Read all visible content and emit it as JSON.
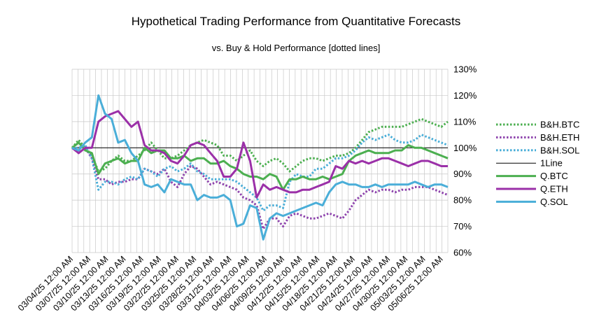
{
  "chart_data": {
    "type": "line",
    "title": "Hypothetical Trading Performance from Quantitative Forecasts",
    "subtitle": "vs. Buy & Hold Performance [dotted lines]",
    "xlabel": "",
    "ylabel": "",
    "ylim": [
      60,
      130
    ],
    "yticks": [
      "60%",
      "70%",
      "80%",
      "90%",
      "100%",
      "110%",
      "120%",
      "130%"
    ],
    "grid": true,
    "legend_position": "right",
    "x_tick_labels": [
      "03/04/25 12:00 AM",
      "03/07/25 12:00 AM",
      "03/10/25 12:00 AM",
      "03/13/25 12:00 AM",
      "03/16/25 12:00 AM",
      "03/19/25 12:00 AM",
      "03/22/25 12:00 AM",
      "03/25/25 12:00 AM",
      "03/28/25 12:00 AM",
      "03/31/25 12:00 AM",
      "04/03/25 12:00 AM",
      "04/06/25 12:00 AM",
      "04/09/25 12:00 AM",
      "04/12/25 12:00 AM",
      "04/15/25 12:00 AM",
      "04/18/25 12:00 AM",
      "04/21/25 12:00 AM",
      "04/24/25 12:00 AM",
      "04/27/25 12:00 AM",
      "04/30/25 12:00 AM",
      "05/03/25 12:00 AM",
      "05/06/25 12:00 AM"
    ],
    "x_label_every": 3,
    "series": [
      {
        "name": "B&H.BTC",
        "style": "dotted",
        "color": "#4caf50",
        "values": [
          100,
          103,
          100,
          97,
          91,
          92,
          95,
          97,
          95,
          95,
          97,
          99,
          102,
          99,
          96,
          96,
          97,
          99,
          101,
          102,
          103,
          102,
          101,
          97,
          97,
          95,
          97,
          99,
          95,
          93,
          95,
          96,
          94,
          91,
          93,
          95,
          96,
          96,
          95,
          96,
          97,
          97,
          98,
          100,
          103,
          106,
          107,
          108,
          108,
          108,
          108,
          109,
          110,
          111,
          110,
          109,
          108,
          110
        ]
      },
      {
        "name": "B&H.ETH",
        "style": "dotted",
        "color": "#8e44ad",
        "values": [
          100,
          98,
          100,
          96,
          88,
          88,
          86,
          87,
          87,
          88,
          88,
          92,
          91,
          90,
          92,
          87,
          85,
          90,
          93,
          92,
          89,
          86,
          87,
          86,
          85,
          84,
          81,
          80,
          78,
          69,
          73,
          73,
          70,
          74,
          75,
          74,
          73,
          73,
          74,
          75,
          74,
          73,
          76,
          80,
          82,
          84,
          83,
          84,
          84,
          83,
          84,
          84,
          85,
          85,
          85,
          84,
          83,
          82
        ]
      },
      {
        "name": "B&H.SOL",
        "style": "dotted",
        "color": "#4aaed8",
        "values": [
          100,
          100,
          101,
          96,
          84,
          87,
          87,
          86,
          88,
          89,
          88,
          92,
          91,
          89,
          92,
          93,
          91,
          92,
          94,
          91,
          90,
          88,
          88,
          88,
          88,
          87,
          85,
          83,
          81,
          76,
          78,
          78,
          77,
          87,
          90,
          89,
          89,
          92,
          92,
          94,
          96,
          96,
          97,
          99,
          102,
          104,
          103,
          104,
          105,
          103,
          102,
          102,
          103,
          105,
          104,
          103,
          102,
          101
        ]
      },
      {
        "name": "1Line",
        "style": "solid-thin",
        "color": "#000000",
        "values": [
          100,
          100,
          100,
          100,
          100,
          100,
          100,
          100,
          100,
          100,
          100,
          100,
          100,
          100,
          100,
          100,
          100,
          100,
          100,
          100,
          100,
          100,
          100,
          100,
          100,
          100,
          100,
          100,
          100,
          100,
          100,
          100,
          100,
          100,
          100,
          100,
          100,
          100,
          100,
          100,
          100,
          100,
          100,
          100,
          100,
          100,
          100,
          100,
          100,
          100,
          100,
          100,
          100,
          100,
          100,
          100,
          100,
          100
        ]
      },
      {
        "name": "Q.BTC",
        "style": "solid",
        "color": "#4caf50",
        "values": [
          100,
          102,
          99,
          98,
          90,
          94,
          95,
          96,
          94,
          95,
          95,
          100,
          98,
          99,
          99,
          96,
          96,
          97,
          95,
          96,
          96,
          94,
          94,
          95,
          93,
          92,
          90,
          89,
          89,
          88,
          90,
          89,
          84,
          88,
          88,
          89,
          88,
          88,
          89,
          88,
          89,
          90,
          95,
          97,
          98,
          99,
          98,
          98,
          98,
          99,
          99,
          101,
          100,
          100,
          99,
          98,
          97,
          96
        ]
      },
      {
        "name": "Q.ETH",
        "style": "solid",
        "color": "#9b30a8",
        "values": [
          100,
          98,
          100,
          100,
          110,
          112,
          113,
          114,
          111,
          108,
          110,
          101,
          99,
          99,
          98,
          95,
          94,
          97,
          101,
          102,
          101,
          98,
          95,
          89,
          89,
          92,
          102,
          95,
          81,
          86,
          84,
          85,
          84,
          83,
          83,
          84,
          84,
          85,
          86,
          87,
          93,
          92,
          95,
          94,
          95,
          94,
          95,
          96,
          96,
          95,
          94,
          93,
          94,
          95,
          95,
          94,
          93,
          93
        ]
      },
      {
        "name": "Q.SOL",
        "style": "solid",
        "color": "#4aaed8",
        "values": [
          100,
          99,
          102,
          104,
          120,
          113,
          111,
          102,
          103,
          98,
          95,
          86,
          85,
          86,
          83,
          88,
          87,
          86,
          86,
          80,
          82,
          81,
          81,
          82,
          80,
          70,
          71,
          78,
          77,
          65,
          73,
          75,
          74,
          75,
          76,
          77,
          78,
          79,
          78,
          83,
          86,
          87,
          86,
          86,
          85,
          85,
          86,
          85,
          86,
          86,
          86,
          86,
          87,
          86,
          85,
          86,
          86,
          85
        ]
      }
    ]
  }
}
